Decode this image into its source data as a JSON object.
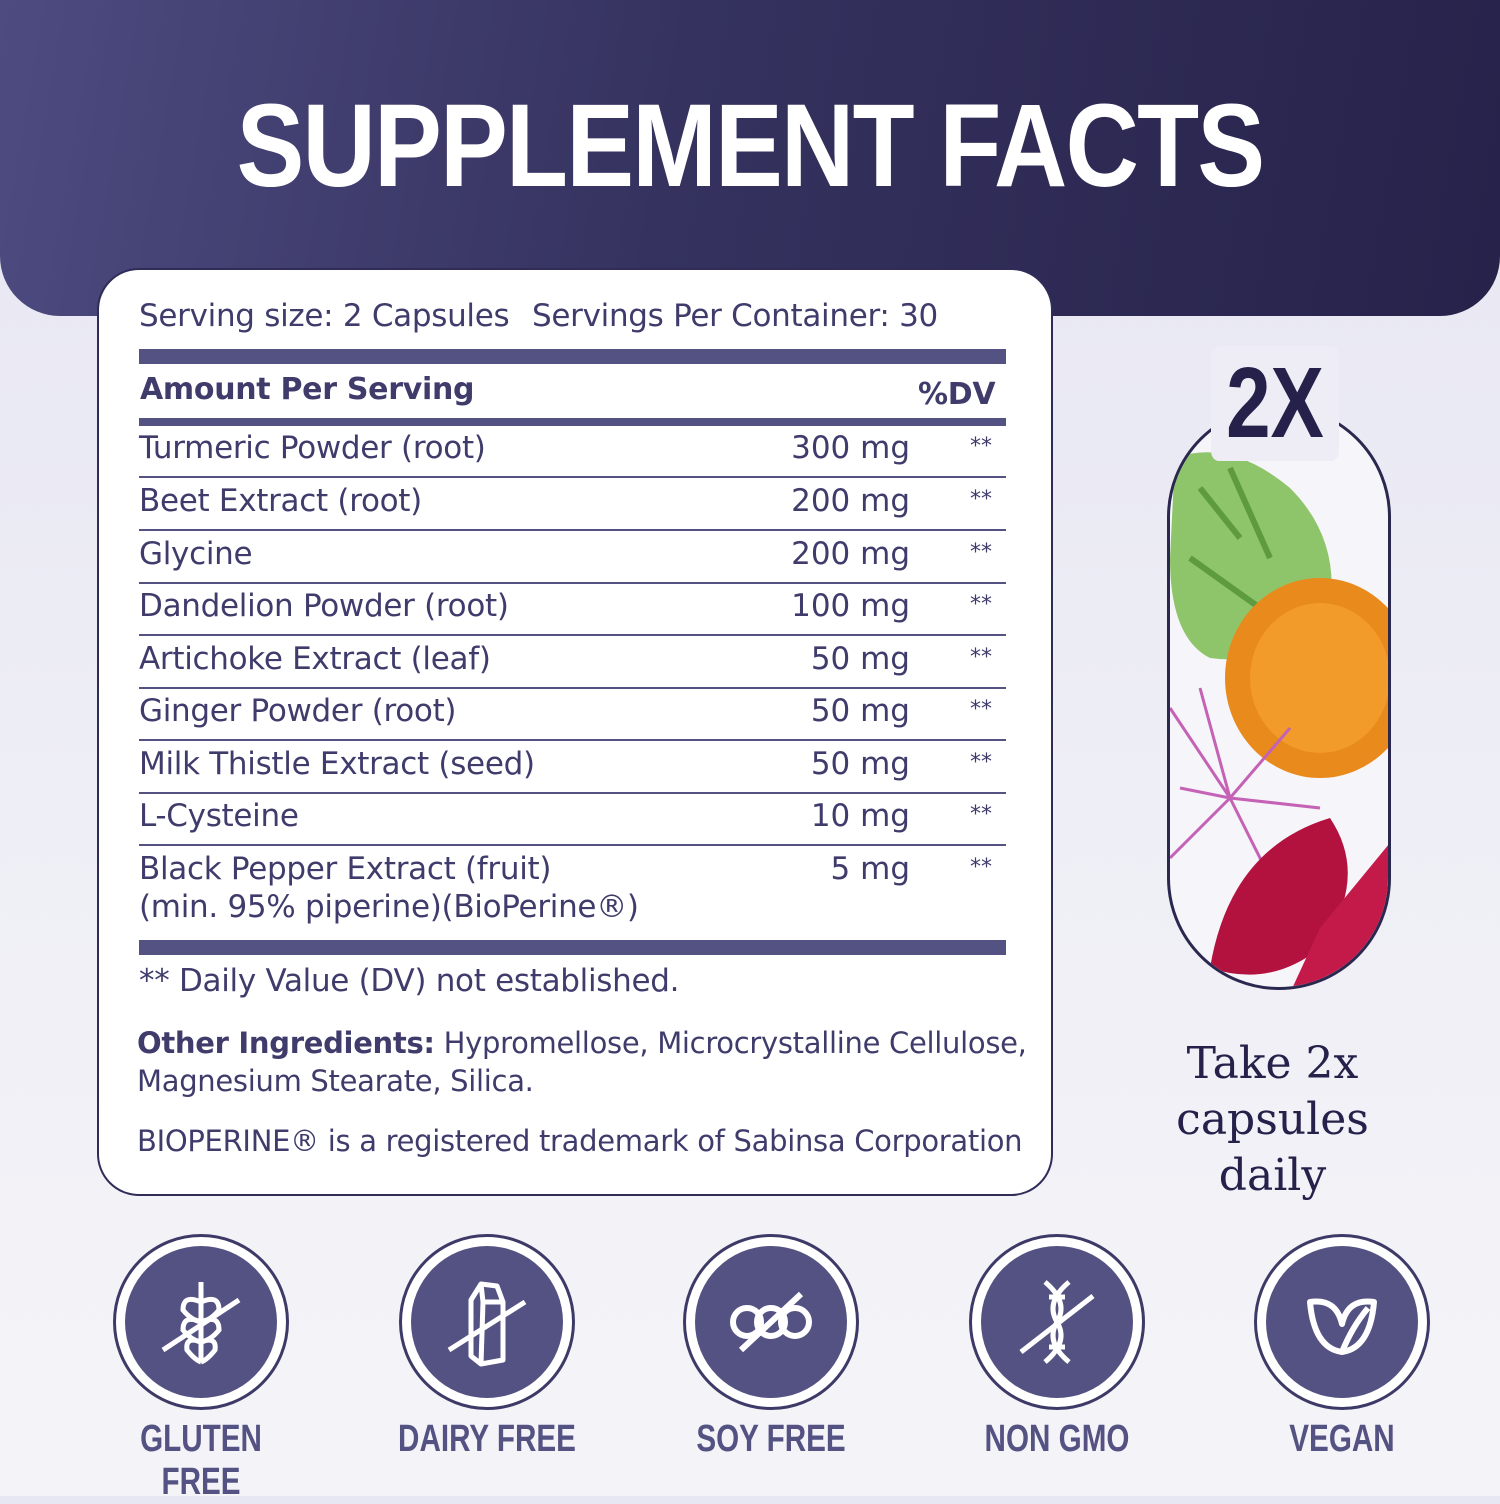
{
  "header": {
    "title": "SUPPLEMENT FACTS"
  },
  "facts": {
    "serving_size": "Serving size: 2 Capsules",
    "servings_per_container": "Servings Per Container: 30",
    "amount_header": "Amount Per Serving",
    "dv_header": "%DV",
    "rows": [
      {
        "name": "Turmeric Powder (root)",
        "amount": "300 mg",
        "dv": "**"
      },
      {
        "name": "Beet Extract (root)",
        "amount": "200 mg",
        "dv": "**"
      },
      {
        "name": "Glycine",
        "amount": "200 mg",
        "dv": "**"
      },
      {
        "name": "Dandelion Powder (root)",
        "amount": "100 mg",
        "dv": "**"
      },
      {
        "name": "Artichoke Extract (leaf)",
        "amount": "50 mg",
        "dv": "**"
      },
      {
        "name": "Ginger Powder (root)",
        "amount": "50 mg",
        "dv": "**"
      },
      {
        "name": "Milk Thistle Extract (seed)",
        "amount": "50 mg",
        "dv": "**"
      },
      {
        "name": "L-Cysteine",
        "amount": "10 mg",
        "dv": "**"
      },
      {
        "name": "Black Pepper Extract (fruit)",
        "name_line2": "(min. 95% piperine)(BioPerine®)",
        "amount": "5 mg",
        "dv": "**"
      }
    ],
    "footnote": "** Daily Value (DV) not established.",
    "other_label": "Other Ingredients:",
    "other_text": " Hypromellose, Microcrystalline Cellulose,",
    "other_text2": "Magnesium Stearate, Silica.",
    "trademark": "BIOPERINE® is a registered trademark of Sabinsa Corporation"
  },
  "dosage": {
    "badge": "2X",
    "line1": "Take 2x",
    "line2": "capsules",
    "line3": "daily"
  },
  "badges": [
    {
      "label": "GLUTEN FREE",
      "icon": "wheat-crossed-icon"
    },
    {
      "label": "DAIRY FREE",
      "icon": "milk-carton-crossed-icon"
    },
    {
      "label": "SOY FREE",
      "icon": "soybean-crossed-icon"
    },
    {
      "label": "NON GMO",
      "icon": "dna-crossed-icon"
    },
    {
      "label": "VEGAN",
      "icon": "leaf-icon"
    }
  ],
  "colors": {
    "navy": "#2b2850",
    "accent": "#545282",
    "text": "#3f3c6c"
  }
}
